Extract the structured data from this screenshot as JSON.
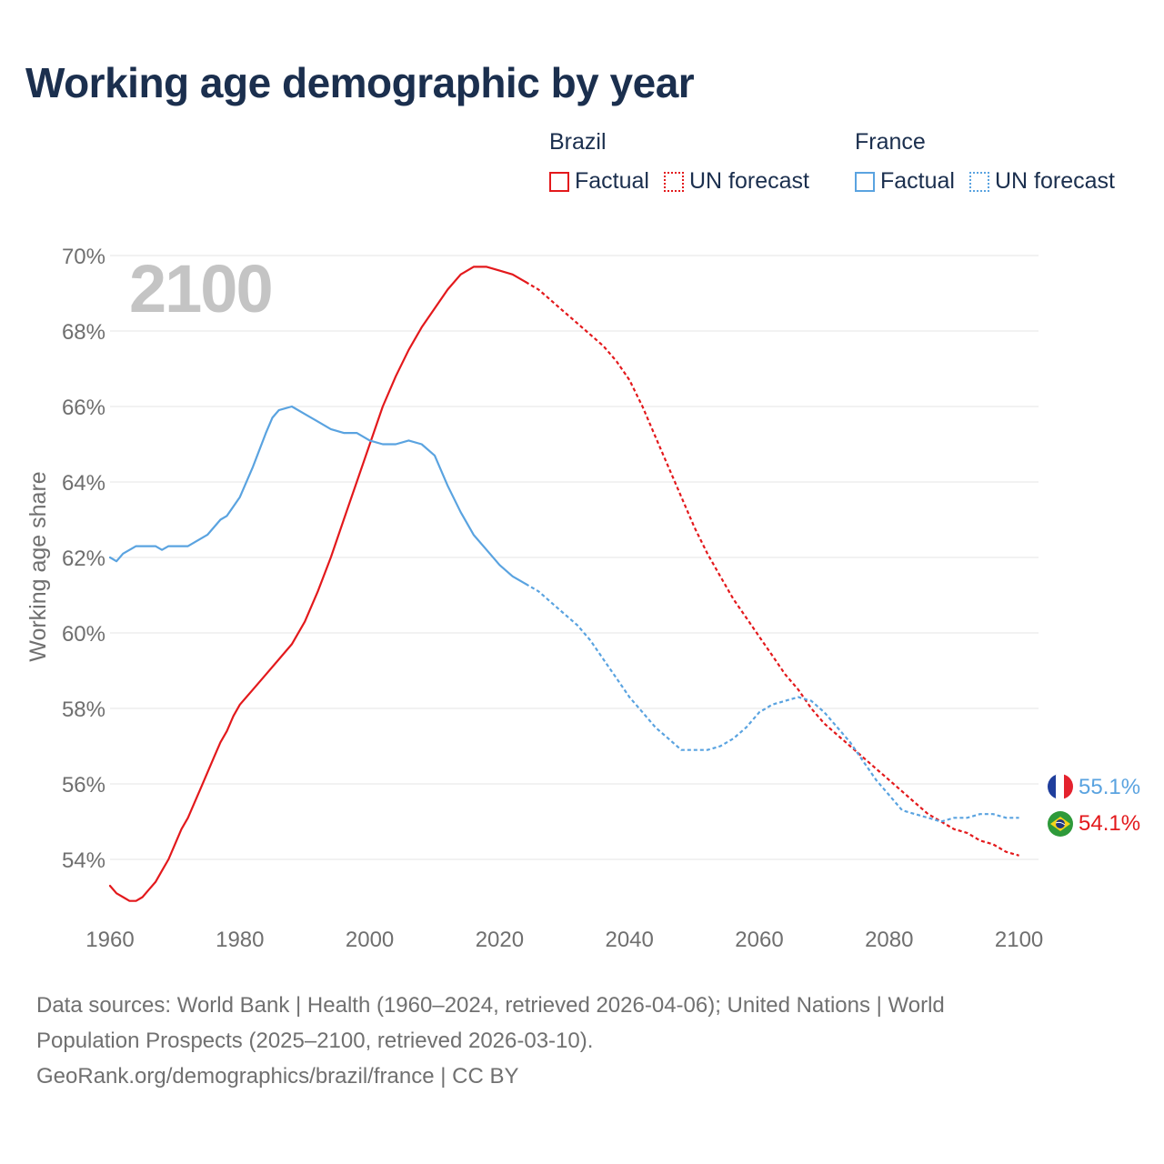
{
  "title": "Working age demographic by year",
  "legend": {
    "brazil": {
      "group": "Brazil",
      "factual": "Factual",
      "forecast": "UN forecast",
      "color": "#e3191c"
    },
    "france": {
      "group": "France",
      "factual": "Factual",
      "forecast": "UN forecast",
      "color": "#5aa3e0"
    }
  },
  "year_overlay": "2100",
  "end_labels": {
    "france": "55.1%",
    "brazil": "54.1%"
  },
  "flags": {
    "france": "france-flag",
    "brazil": "brazil-flag"
  },
  "footer": {
    "line1": "Data sources: World Bank | Health (1960–2024, retrieved 2026-04-06); United Nations | World",
    "line2": "Population Prospects (2025–2100, retrieved 2026-03-10).",
    "line3": "GeoRank.org/demographics/brazil/france | CC BY"
  },
  "chart_data": {
    "type": "line",
    "title": "Working age demographic by year",
    "xlabel": "",
    "ylabel": "Working age share",
    "xlim": [
      1960,
      2103
    ],
    "ylim": [
      52,
      70
    ],
    "xticks": [
      1960,
      1980,
      2000,
      2020,
      2040,
      2060,
      2080,
      2100
    ],
    "yticks": [
      54,
      56,
      58,
      60,
      62,
      64,
      66,
      68,
      70
    ],
    "ytick_labels": [
      "54%",
      "56%",
      "58%",
      "60%",
      "62%",
      "64%",
      "66%",
      "68%",
      "70%"
    ],
    "grid": true,
    "series": [
      {
        "name": "Brazil",
        "segment": "Factual",
        "style": "solid",
        "color": "#e3191c",
        "points": [
          [
            1960,
            53.3
          ],
          [
            1961,
            53.1
          ],
          [
            1962,
            53.0
          ],
          [
            1963,
            52.9
          ],
          [
            1964,
            52.9
          ],
          [
            1965,
            53.0
          ],
          [
            1966,
            53.2
          ],
          [
            1967,
            53.4
          ],
          [
            1968,
            53.7
          ],
          [
            1969,
            54.0
          ],
          [
            1970,
            54.4
          ],
          [
            1971,
            54.8
          ],
          [
            1972,
            55.1
          ],
          [
            1973,
            55.5
          ],
          [
            1974,
            55.9
          ],
          [
            1975,
            56.3
          ],
          [
            1976,
            56.7
          ],
          [
            1977,
            57.1
          ],
          [
            1978,
            57.4
          ],
          [
            1979,
            57.8
          ],
          [
            1980,
            58.1
          ],
          [
            1982,
            58.5
          ],
          [
            1984,
            58.9
          ],
          [
            1986,
            59.3
          ],
          [
            1988,
            59.7
          ],
          [
            1990,
            60.3
          ],
          [
            1992,
            61.1
          ],
          [
            1994,
            62.0
          ],
          [
            1996,
            63.0
          ],
          [
            1998,
            64.0
          ],
          [
            2000,
            65.0
          ],
          [
            2002,
            66.0
          ],
          [
            2004,
            66.8
          ],
          [
            2006,
            67.5
          ],
          [
            2008,
            68.1
          ],
          [
            2010,
            68.6
          ],
          [
            2012,
            69.1
          ],
          [
            2014,
            69.5
          ],
          [
            2016,
            69.7
          ],
          [
            2018,
            69.7
          ],
          [
            2020,
            69.6
          ],
          [
            2022,
            69.5
          ],
          [
            2024,
            69.3
          ]
        ]
      },
      {
        "name": "Brazil",
        "segment": "UN forecast",
        "style": "dotted",
        "color": "#e3191c",
        "points": [
          [
            2024,
            69.3
          ],
          [
            2026,
            69.1
          ],
          [
            2028,
            68.8
          ],
          [
            2030,
            68.5
          ],
          [
            2032,
            68.2
          ],
          [
            2034,
            67.9
          ],
          [
            2036,
            67.6
          ],
          [
            2038,
            67.2
          ],
          [
            2040,
            66.7
          ],
          [
            2042,
            66.0
          ],
          [
            2044,
            65.2
          ],
          [
            2046,
            64.4
          ],
          [
            2048,
            63.6
          ],
          [
            2050,
            62.8
          ],
          [
            2052,
            62.1
          ],
          [
            2054,
            61.5
          ],
          [
            2056,
            60.9
          ],
          [
            2058,
            60.4
          ],
          [
            2060,
            59.9
          ],
          [
            2062,
            59.4
          ],
          [
            2064,
            58.9
          ],
          [
            2066,
            58.5
          ],
          [
            2068,
            58.0
          ],
          [
            2070,
            57.6
          ],
          [
            2072,
            57.3
          ],
          [
            2074,
            57.0
          ],
          [
            2076,
            56.7
          ],
          [
            2078,
            56.4
          ],
          [
            2080,
            56.1
          ],
          [
            2082,
            55.8
          ],
          [
            2084,
            55.5
          ],
          [
            2086,
            55.2
          ],
          [
            2088,
            55.0
          ],
          [
            2090,
            54.8
          ],
          [
            2092,
            54.7
          ],
          [
            2094,
            54.5
          ],
          [
            2096,
            54.4
          ],
          [
            2098,
            54.2
          ],
          [
            2100,
            54.1
          ]
        ]
      },
      {
        "name": "France",
        "segment": "Factual",
        "style": "solid",
        "color": "#5aa3e0",
        "points": [
          [
            1960,
            62.0
          ],
          [
            1961,
            61.9
          ],
          [
            1962,
            62.1
          ],
          [
            1964,
            62.3
          ],
          [
            1966,
            62.3
          ],
          [
            1967,
            62.3
          ],
          [
            1968,
            62.2
          ],
          [
            1969,
            62.3
          ],
          [
            1972,
            62.3
          ],
          [
            1975,
            62.6
          ],
          [
            1977,
            63.0
          ],
          [
            1978,
            63.1
          ],
          [
            1980,
            63.6
          ],
          [
            1982,
            64.4
          ],
          [
            1984,
            65.3
          ],
          [
            1985,
            65.7
          ],
          [
            1986,
            65.9
          ],
          [
            1988,
            66.0
          ],
          [
            1990,
            65.8
          ],
          [
            1992,
            65.6
          ],
          [
            1994,
            65.4
          ],
          [
            1996,
            65.3
          ],
          [
            1998,
            65.3
          ],
          [
            2000,
            65.1
          ],
          [
            2002,
            65.0
          ],
          [
            2004,
            65.0
          ],
          [
            2006,
            65.1
          ],
          [
            2008,
            65.0
          ],
          [
            2010,
            64.7
          ],
          [
            2012,
            63.9
          ],
          [
            2014,
            63.2
          ],
          [
            2016,
            62.6
          ],
          [
            2018,
            62.2
          ],
          [
            2020,
            61.8
          ],
          [
            2022,
            61.5
          ],
          [
            2024,
            61.3
          ]
        ]
      },
      {
        "name": "France",
        "segment": "UN forecast",
        "style": "dotted",
        "color": "#5aa3e0",
        "points": [
          [
            2024,
            61.3
          ],
          [
            2026,
            61.1
          ],
          [
            2028,
            60.8
          ],
          [
            2030,
            60.5
          ],
          [
            2032,
            60.2
          ],
          [
            2034,
            59.8
          ],
          [
            2036,
            59.3
          ],
          [
            2038,
            58.8
          ],
          [
            2040,
            58.3
          ],
          [
            2042,
            57.9
          ],
          [
            2044,
            57.5
          ],
          [
            2046,
            57.2
          ],
          [
            2048,
            56.9
          ],
          [
            2050,
            56.9
          ],
          [
            2052,
            56.9
          ],
          [
            2054,
            57.0
          ],
          [
            2056,
            57.2
          ],
          [
            2058,
            57.5
          ],
          [
            2060,
            57.9
          ],
          [
            2062,
            58.1
          ],
          [
            2064,
            58.2
          ],
          [
            2066,
            58.3
          ],
          [
            2068,
            58.2
          ],
          [
            2070,
            57.9
          ],
          [
            2072,
            57.5
          ],
          [
            2074,
            57.1
          ],
          [
            2076,
            56.6
          ],
          [
            2078,
            56.1
          ],
          [
            2080,
            55.7
          ],
          [
            2082,
            55.3
          ],
          [
            2084,
            55.2
          ],
          [
            2086,
            55.1
          ],
          [
            2088,
            55.0
          ],
          [
            2090,
            55.1
          ],
          [
            2092,
            55.1
          ],
          [
            2094,
            55.2
          ],
          [
            2096,
            55.2
          ],
          [
            2098,
            55.1
          ],
          [
            2100,
            55.1
          ]
        ]
      }
    ]
  }
}
